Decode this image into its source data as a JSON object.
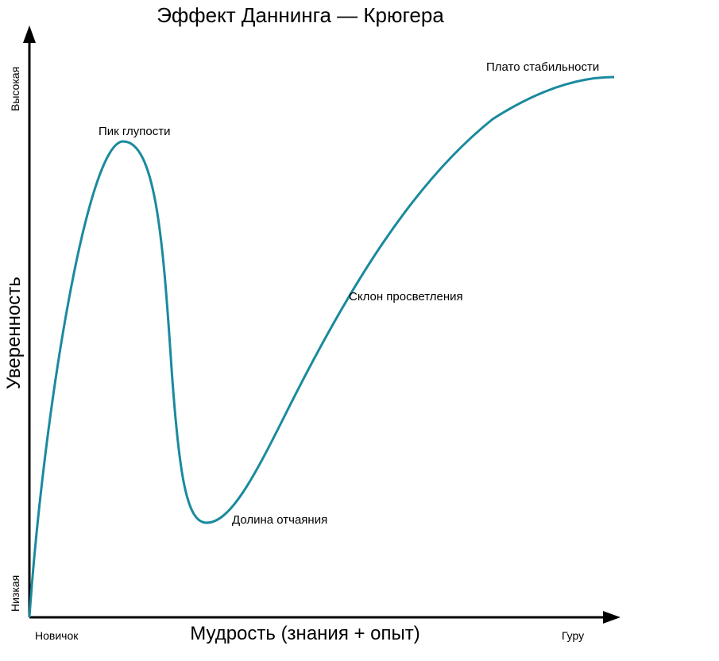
{
  "title": "Эффект Даннинга — Крюгера",
  "y_axis": {
    "label": "Уверенность",
    "high": "Высокая",
    "low": "Низкая"
  },
  "x_axis": {
    "label": "Мудрость (знания + опыт)",
    "start": "Новичок",
    "end": "Гуру"
  },
  "annotations": [
    "Пик глупости",
    "Долина отчаяния",
    "Склон просветления",
    "Плато стабильности"
  ]
}
